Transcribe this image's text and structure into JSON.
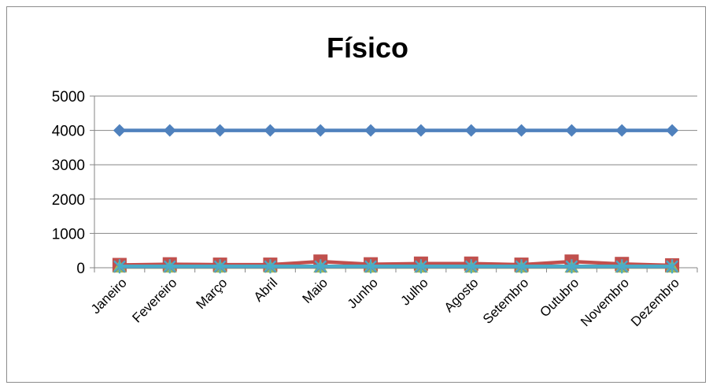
{
  "chart_data": {
    "type": "line",
    "title": "Físico",
    "xlabel": "",
    "ylabel": "",
    "categories": [
      "Janeiro",
      "Fevereiro",
      "Março",
      "Abril",
      "Maio",
      "Junho",
      "Julho",
      "Agosto",
      "Setembro",
      "Outubro",
      "Novembro",
      "Dezembro"
    ],
    "ylim": [
      0,
      5000
    ],
    "yticks": [
      "0",
      "1000",
      "2000",
      "3000",
      "4000",
      "5000"
    ],
    "grid": "horizontal",
    "legend": "none",
    "series": [
      {
        "values": [
          4000,
          4000,
          4000,
          4000,
          4000,
          4000,
          4000,
          4000,
          4000,
          4000,
          4000,
          4000
        ],
        "color": "#4f81bd",
        "marker": "diamond"
      },
      {
        "values": [
          80,
          100,
          90,
          90,
          180,
          100,
          120,
          120,
          90,
          180,
          110,
          70
        ],
        "color": "#c0504d",
        "marker": "square"
      },
      {
        "values": [
          20,
          20,
          20,
          20,
          20,
          20,
          20,
          20,
          20,
          20,
          20,
          20
        ],
        "color": "#9bbb59",
        "marker": "triangle"
      },
      {
        "values": [
          30,
          30,
          30,
          30,
          30,
          30,
          30,
          30,
          30,
          30,
          30,
          30
        ],
        "color": "#8064a2",
        "marker": "x"
      },
      {
        "values": [
          40,
          40,
          40,
          40,
          40,
          40,
          40,
          40,
          40,
          40,
          40,
          40
        ],
        "color": "#4bacc6",
        "marker": "star"
      }
    ]
  }
}
